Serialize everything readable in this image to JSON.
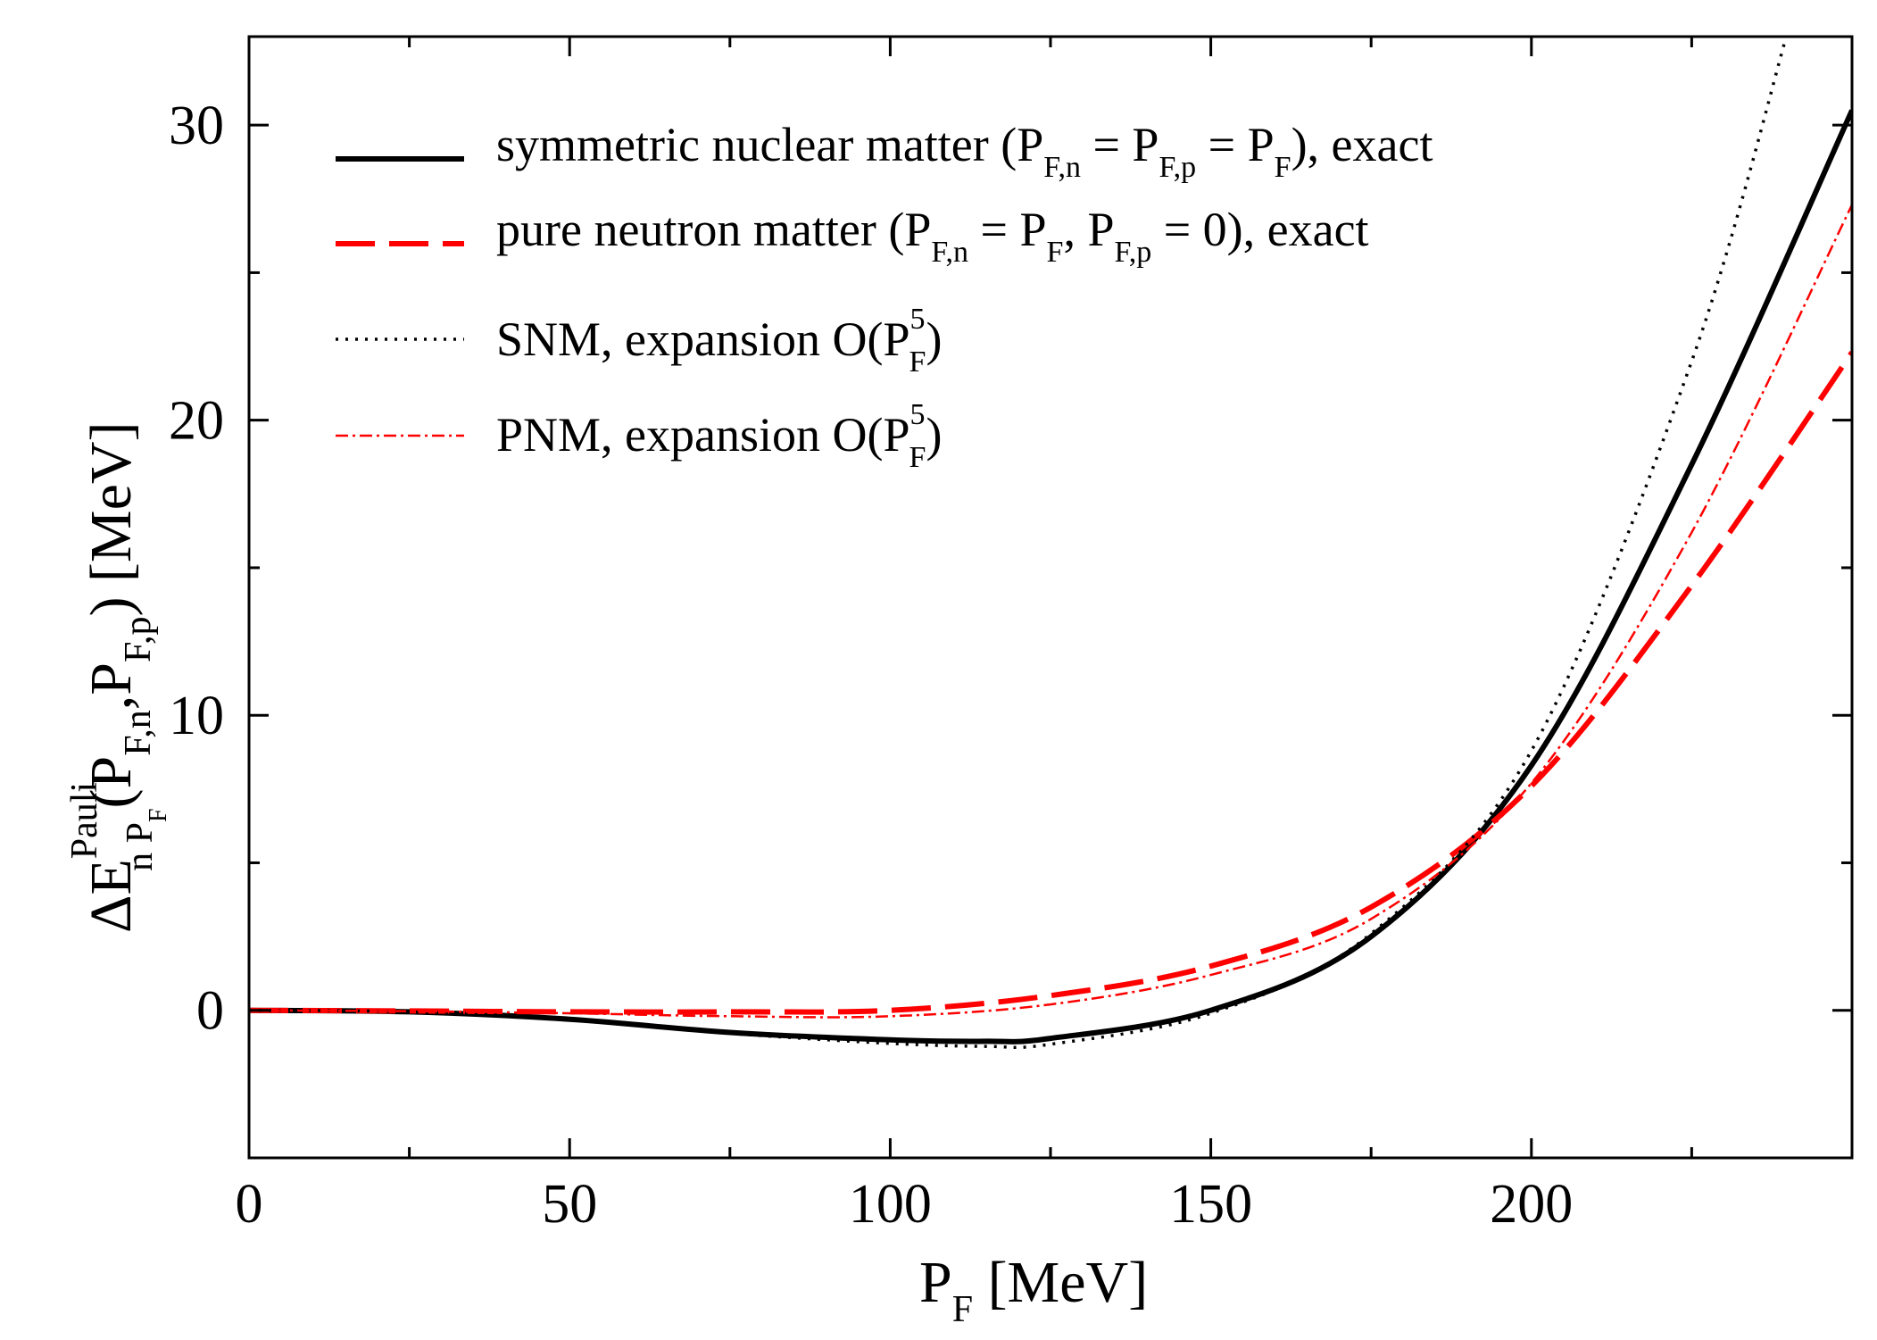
{
  "chart_data": {
    "type": "line",
    "title": "",
    "xlabel": "P_F [MeV]",
    "ylabel": "ΔE^Pauli_{n P_F}(P_F,n, P_F,p) [MeV]",
    "xlim": [
      0,
      250
    ],
    "ylim": [
      -5,
      33
    ],
    "grid": false,
    "legend_position": "top-left",
    "x_ticks": [
      0,
      50,
      100,
      150,
      200
    ],
    "x_tick_labels": [
      "0",
      "50",
      "100",
      "150",
      "200"
    ],
    "y_ticks": [
      0,
      10,
      20,
      30
    ],
    "y_tick_labels": [
      "0",
      "10",
      "20",
      "30"
    ],
    "series": [
      {
        "name": "symmetric nuclear matter (P_F,n = P_F,p = P_F), exact",
        "color": "#000000",
        "style": "solid",
        "x": [
          0,
          25,
          50,
          75,
          100,
          115,
          125,
          150,
          175,
          200,
          225,
          250
        ],
        "y": [
          0,
          -0.05,
          -0.3,
          -0.75,
          -1.0,
          -1.05,
          -0.95,
          0,
          2.5,
          8.3,
          18.5,
          30.5
        ]
      },
      {
        "name": "pure neutron matter (P_F,n = P_F, P_F,p = 0), exact",
        "color": "#ff0000",
        "style": "dashed",
        "x": [
          0,
          25,
          50,
          75,
          100,
          125,
          150,
          175,
          200,
          225,
          250
        ],
        "y": [
          0,
          -0.02,
          -0.05,
          -0.05,
          0.0,
          0.5,
          1.5,
          3.5,
          7.6,
          14.4,
          22.3
        ]
      },
      {
        "name": "SNM, expansion O(P_F^5)",
        "color": "#000000",
        "style": "dotted",
        "x": [
          0,
          25,
          50,
          75,
          100,
          115,
          125,
          150,
          175,
          200,
          225,
          240
        ],
        "y": [
          0,
          -0.05,
          -0.3,
          -0.78,
          -1.12,
          -1.22,
          -1.15,
          -0.1,
          2.6,
          8.8,
          22.0,
          33.2
        ]
      },
      {
        "name": "PNM, expansion O(P_F^5)",
        "color": "#ff0000",
        "style": "dashdot",
        "x": [
          0,
          25,
          50,
          75,
          100,
          125,
          150,
          175,
          200,
          225,
          250
        ],
        "y": [
          0,
          -0.03,
          -0.1,
          -0.2,
          -0.2,
          0.2,
          1.2,
          3.1,
          7.7,
          16.2,
          27.3
        ]
      }
    ],
    "legend": [
      {
        "label": "symmetric nuclear matter (P",
        "sub1": "F,n",
        "mid1": " = P",
        "sub2": "F,p",
        "mid2": " = P",
        "sub3": "F",
        "end": "), exact"
      },
      {
        "label": "pure neutron matter (P",
        "sub1": "F,n",
        "mid1": " = P",
        "sub2": "F",
        "mid2": ", P",
        "sub3": "F,p",
        "end": " = 0), exact"
      },
      {
        "label": "SNM, expansion O(P",
        "sup": "5",
        "sub": "F",
        "end": ")"
      },
      {
        "label": "PNM, expansion O(P",
        "sup": "5",
        "sub": "F",
        "end": ")"
      }
    ],
    "axis_title_parts": {
      "x_main": "P",
      "x_sub": "F",
      "x_unit": " [MeV]",
      "y_delta": "ΔE",
      "y_sup": "Pauli",
      "y_sub": "n P",
      "y_subsub": "F",
      "y_args_open": "(P",
      "y_args_sub1": "F,n",
      "y_args_comma": ",P",
      "y_args_sub2": "F,p",
      "y_args_close": ")",
      "y_unit": " [MeV]"
    }
  }
}
